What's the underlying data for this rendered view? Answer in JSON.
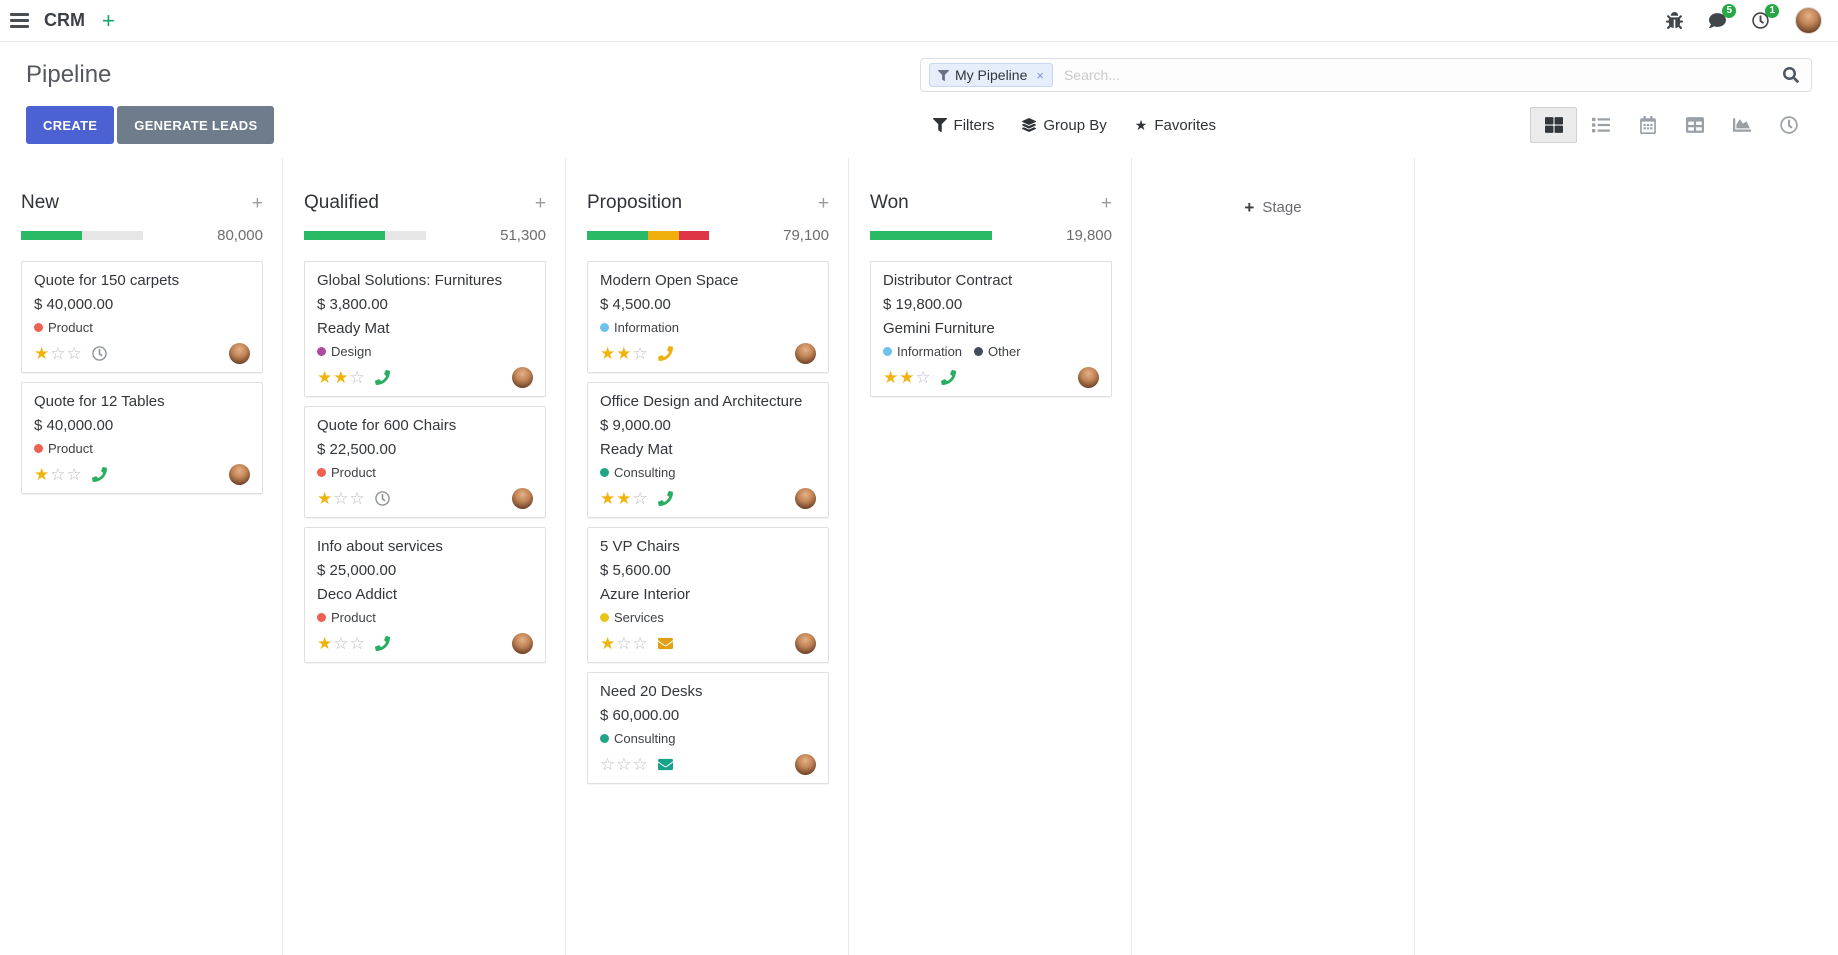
{
  "navbar": {
    "app_name": "CRM",
    "message_badge": "5",
    "activity_badge": "1"
  },
  "control_panel": {
    "title": "Pipeline",
    "buttons": {
      "create": "CREATE",
      "generate_leads": "GENERATE LEADS"
    },
    "search": {
      "facet_label": "My Pipeline",
      "facet_remove": "×",
      "placeholder": "Search..."
    },
    "filters": {
      "filters_label": "Filters",
      "group_by_label": "Group By",
      "favorites_label": "Favorites"
    }
  },
  "icons": {
    "plus": "+",
    "close": "×",
    "star_filled": "★",
    "star_empty": "☆",
    "favorites_star": "★"
  },
  "palette": {
    "primary_button": "#4c61d2",
    "secondary_button": "#6e7c8c",
    "progress_green": "#2aba66",
    "progress_yellow": "#efae0c",
    "progress_red": "#dc3545",
    "star_gold": "#f0b40f",
    "badge_green": "#28a745",
    "navbar_plus": "#13a06b"
  },
  "kanban": {
    "add_column_label": "Stage",
    "columns": [
      {
        "name": "New",
        "total": "80,000",
        "progress": [
          {
            "color": "#2aba66",
            "pct": 50
          },
          {
            "color": "#e6e6e6",
            "pct": 50
          }
        ],
        "cards": [
          {
            "title": "Quote for 150 carpets",
            "amount": "$ 40,000.00",
            "partner": "",
            "tags": [
              {
                "label": "Product",
                "color": "#f06050"
              }
            ],
            "stars": 1,
            "activity": {
              "type": "clock",
              "color": "#8f9499"
            }
          },
          {
            "title": "Quote for 12 Tables",
            "amount": "$ 40,000.00",
            "partner": "",
            "tags": [
              {
                "label": "Product",
                "color": "#f06050"
              }
            ],
            "stars": 1,
            "activity": {
              "type": "phone",
              "color": "#27ae60"
            }
          }
        ]
      },
      {
        "name": "Qualified",
        "total": "51,300",
        "progress": [
          {
            "color": "#2aba66",
            "pct": 66.7
          },
          {
            "color": "#e6e6e6",
            "pct": 33.3
          }
        ],
        "cards": [
          {
            "title": "Global Solutions: Furnitures",
            "amount": "$ 3,800.00",
            "partner": "Ready Mat",
            "tags": [
              {
                "label": "Design",
                "color": "#ad4ba0"
              }
            ],
            "stars": 2,
            "activity": {
              "type": "phone",
              "color": "#27ae60"
            }
          },
          {
            "title": "Quote for 600 Chairs",
            "amount": "$ 22,500.00",
            "partner": "",
            "tags": [
              {
                "label": "Product",
                "color": "#f06050"
              }
            ],
            "stars": 1,
            "activity": {
              "type": "clock",
              "color": "#8f9499"
            }
          },
          {
            "title": "Info about services",
            "amount": "$ 25,000.00",
            "partner": "Deco Addict",
            "tags": [
              {
                "label": "Product",
                "color": "#f06050"
              }
            ],
            "stars": 1,
            "activity": {
              "type": "phone",
              "color": "#27ae60"
            }
          }
        ]
      },
      {
        "name": "Proposition",
        "total": "79,100",
        "progress": [
          {
            "color": "#2aba66",
            "pct": 50
          },
          {
            "color": "#efae0c",
            "pct": 25
          },
          {
            "color": "#dc3545",
            "pct": 25
          }
        ],
        "cards": [
          {
            "title": "Modern Open Space",
            "amount": "$ 4,500.00",
            "partner": "",
            "tags": [
              {
                "label": "Information",
                "color": "#6cc1ed"
              }
            ],
            "stars": 2,
            "activity": {
              "type": "phone",
              "color": "#efae0c"
            }
          },
          {
            "title": "Office Design and Architecture",
            "amount": "$ 9,000.00",
            "partner": "Ready Mat",
            "tags": [
              {
                "label": "Consulting",
                "color": "#21a586"
              }
            ],
            "stars": 2,
            "activity": {
              "type": "phone",
              "color": "#27ae60"
            }
          },
          {
            "title": "5 VP Chairs",
            "amount": "$ 5,600.00",
            "partner": "Azure Interior",
            "tags": [
              {
                "label": "Services",
                "color": "#ecc418"
              }
            ],
            "stars": 1,
            "activity": {
              "type": "mail",
              "color": "#dfa116"
            }
          },
          {
            "title": "Need 20 Desks",
            "amount": "$ 60,000.00",
            "partner": "",
            "tags": [
              {
                "label": "Consulting",
                "color": "#21a586"
              }
            ],
            "stars": 0,
            "activity": {
              "type": "mail",
              "color": "#17a289"
            }
          }
        ]
      },
      {
        "name": "Won",
        "total": "19,800",
        "progress": [
          {
            "color": "#2aba66",
            "pct": 100
          }
        ],
        "cards": [
          {
            "title": "Distributor Contract",
            "amount": "$ 19,800.00",
            "partner": "Gemini Furniture",
            "tags": [
              {
                "label": "Information",
                "color": "#6cc1ed"
              },
              {
                "label": "Other",
                "color": "#434a5e"
              }
            ],
            "stars": 2,
            "activity": {
              "type": "phone",
              "color": "#27ae60"
            }
          }
        ]
      }
    ]
  }
}
